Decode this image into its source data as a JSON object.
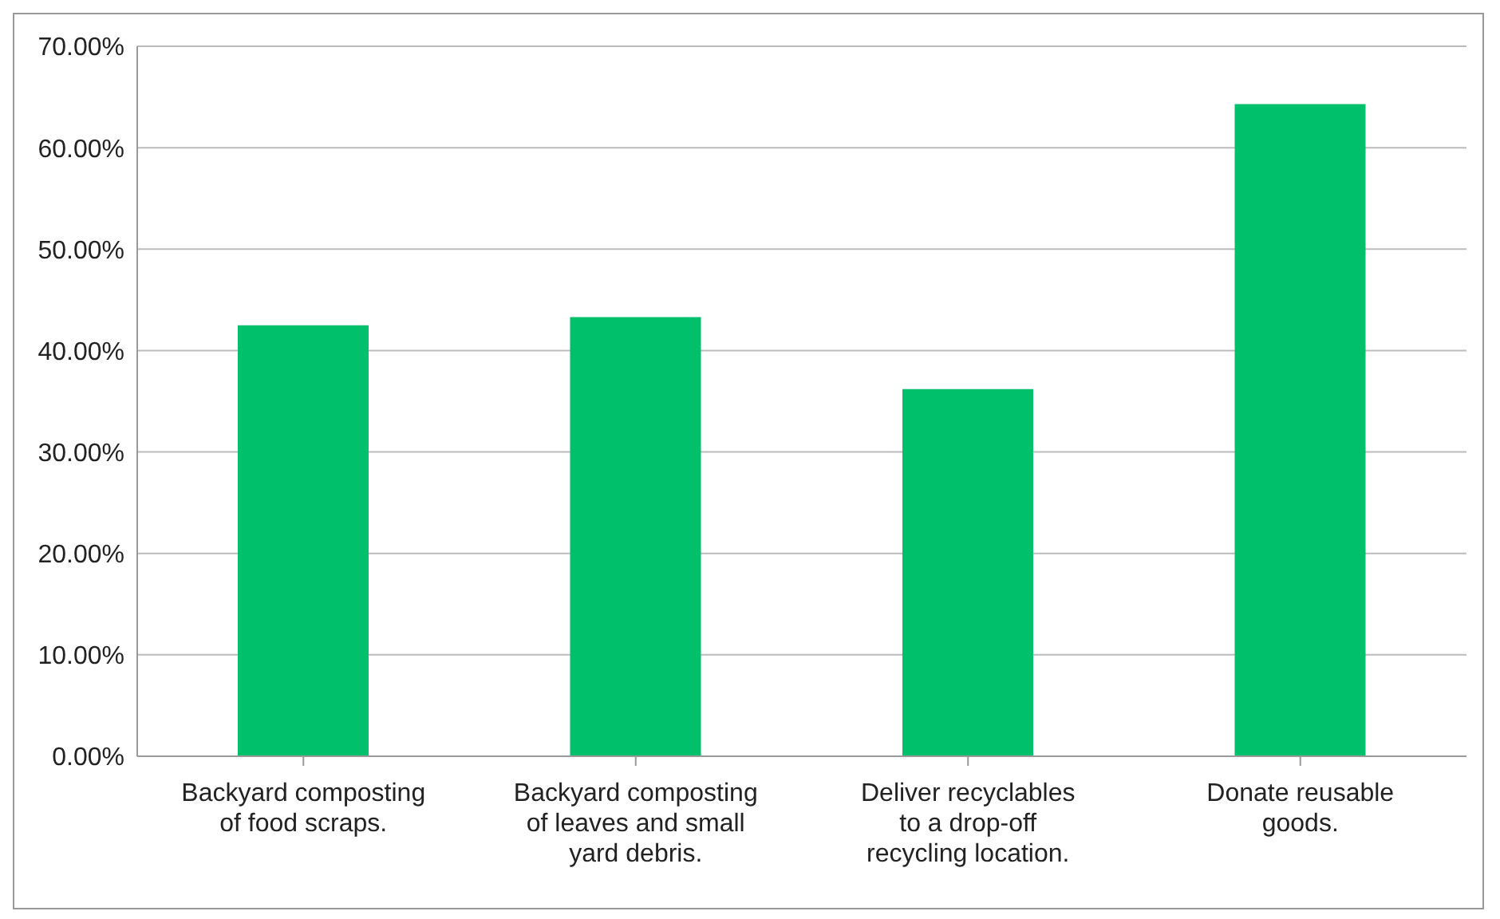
{
  "chart_data": {
    "type": "bar",
    "categories": [
      "Backyard composting of food scraps.",
      "Backyard composting of leaves and small yard debris.",
      "Deliver recyclables to a drop-off recycling location.",
      "Donate reusable goods."
    ],
    "values": [
      42.5,
      43.3,
      36.2,
      64.3
    ],
    "color": "#00c06b",
    "ylim": [
      0,
      70
    ],
    "yticks": [
      {
        "value": 0,
        "label": "0.00%"
      },
      {
        "value": 10,
        "label": "10.00%"
      },
      {
        "value": 20,
        "label": "20.00%"
      },
      {
        "value": 30,
        "label": "30.00%"
      },
      {
        "value": 40,
        "label": "40.00%"
      },
      {
        "value": 50,
        "label": "50.00%"
      },
      {
        "value": 60,
        "label": "60.00%"
      },
      {
        "value": 70,
        "label": "70.00%"
      }
    ],
    "grid": "y"
  }
}
